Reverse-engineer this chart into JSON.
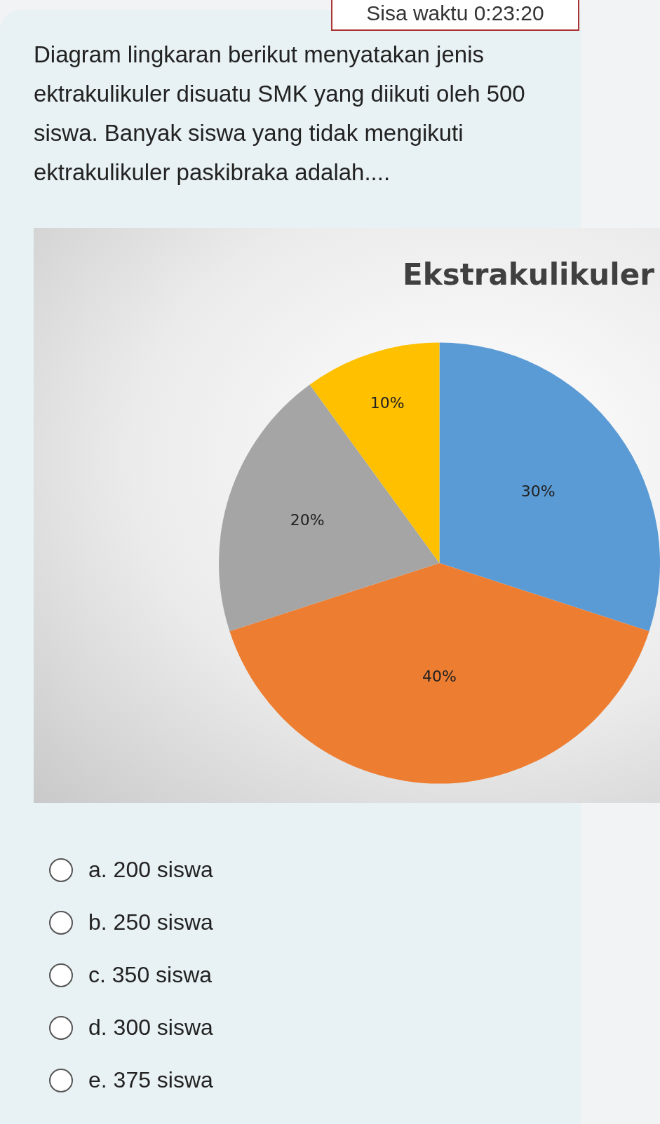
{
  "chart_data": {
    "type": "pie",
    "title": "Ekstrakulikuler",
    "categories": [
      null,
      null,
      null,
      null
    ],
    "values": [
      30,
      40,
      20,
      10
    ],
    "colors": [
      "#5b9bd5",
      "#ed7d31",
      "#a5a5a5",
      "#ffc000"
    ],
    "value_labels": [
      "30%",
      "40%",
      "20%",
      "10%"
    ],
    "annotations": [
      "Sisa waktu 0:23:20",
      "Diagram lingkaran berikut menyatakan jenis ektrakulikuler disuatu SMK yang diikuti oleh 500 siswa. Banyak siswa yang tidak mengikuti ektrakulikuler paskibraka adalah....",
      "a.   200 siswa",
      "b.   250 siswa",
      "c.   350 siswa",
      "d.   300 siswa",
      "e.   375 siswa"
    ]
  }
}
